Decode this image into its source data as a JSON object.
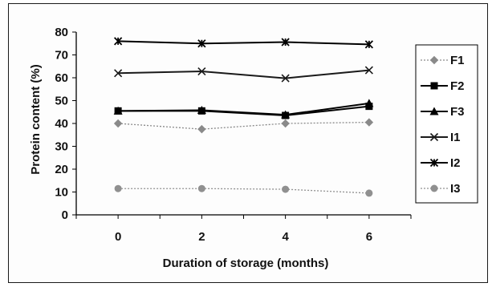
{
  "chart_data": {
    "type": "line",
    "title": "",
    "xlabel": "Duration of storage (months)",
    "ylabel": "Protein content (%)",
    "x": [
      0,
      2,
      4,
      6
    ],
    "ylim": [
      0,
      80
    ],
    "yticks": [
      0,
      10,
      20,
      30,
      40,
      50,
      60,
      70,
      80
    ],
    "grid": false,
    "legend_position": "right",
    "series": [
      {
        "name": "F1",
        "values": [
          40,
          37.5,
          40,
          40.5
        ],
        "color": "#8a8a8a",
        "marker": "diamond",
        "dashed": true
      },
      {
        "name": "F2",
        "values": [
          45.5,
          45.5,
          43.5,
          47.5
        ],
        "color": "#000000",
        "marker": "square",
        "dashed": false
      },
      {
        "name": "F3",
        "values": [
          45.5,
          45.8,
          43.8,
          48.8
        ],
        "color": "#000000",
        "marker": "triangle",
        "dashed": false
      },
      {
        "name": "I1",
        "values": [
          62,
          62.8,
          59.8,
          63.3
        ],
        "color": "#1a1a1a",
        "marker": "x",
        "dashed": false
      },
      {
        "name": "I2",
        "values": [
          76,
          75,
          75.6,
          74.6
        ],
        "color": "#000000",
        "marker": "star",
        "dashed": false
      },
      {
        "name": "I3",
        "values": [
          11.5,
          11.5,
          11.2,
          9.5
        ],
        "color": "#909090",
        "marker": "circle",
        "dashed": true
      }
    ]
  }
}
